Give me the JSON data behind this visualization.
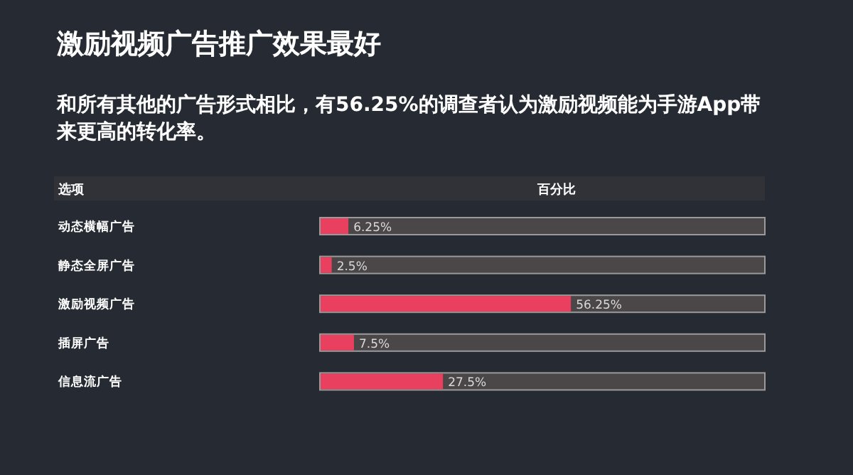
{
  "chart_data": {
    "type": "bar",
    "orientation": "horizontal",
    "title": "激励视频广告推广效果最好",
    "subtitle": "和所有其他的广告形式相比，有56.25%的调查者认为激励视频能为手游App带来更高的转化率。",
    "ylabel": "选项",
    "xlabel": "百分比",
    "categories": [
      "动态横幅广告",
      "静态全屏广告",
      "激励视频广告",
      "插屏广告",
      "信息流广告"
    ],
    "values": [
      6.25,
      2.5,
      56.25,
      7.5,
      27.5
    ],
    "value_labels": [
      "6.25%",
      "2.5%",
      "56.25%",
      "7.5%",
      "27.5%"
    ],
    "color": "#e8405e",
    "tick_labels": "y"
  }
}
